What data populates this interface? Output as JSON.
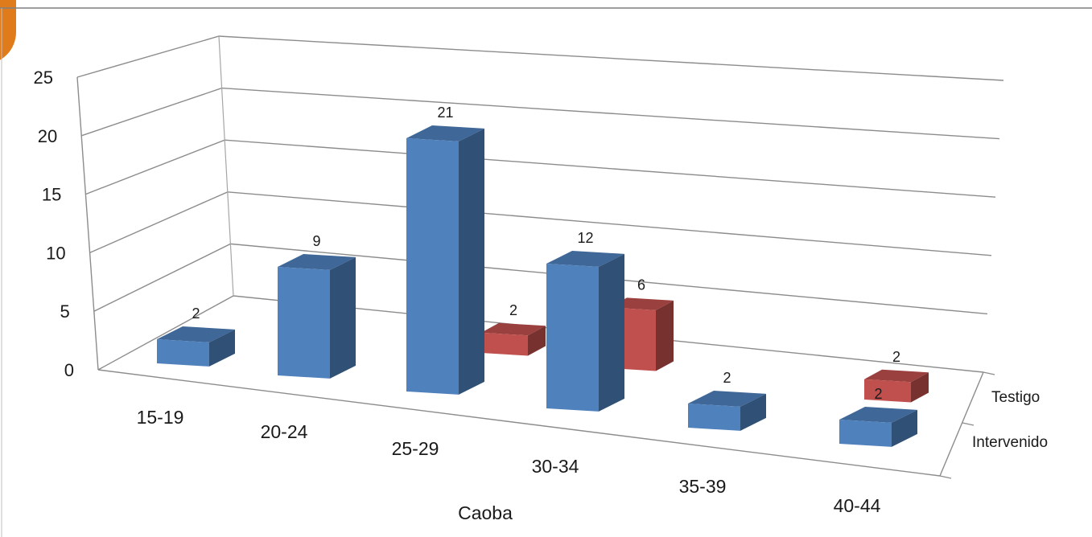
{
  "chart_data": {
    "type": "bar",
    "subtype": "3d-column",
    "categories": [
      "15-19",
      "20-24",
      "25-29",
      "30-34",
      "35-39",
      "40-44"
    ],
    "series": [
      {
        "name": "Intervenido",
        "values": [
          2,
          9,
          21,
          12,
          2,
          2
        ],
        "color": "#4f81bd"
      },
      {
        "name": "Testigo",
        "values": [
          null,
          2,
          6,
          null,
          2,
          null
        ],
        "color": "#c0504d"
      }
    ],
    "xlabel": "Caoba",
    "ylabel": "",
    "ylim": [
      0,
      25
    ],
    "yticks": [
      0,
      5,
      10,
      15,
      20,
      25
    ],
    "grid": true,
    "legend": "depth-axis-right"
  }
}
